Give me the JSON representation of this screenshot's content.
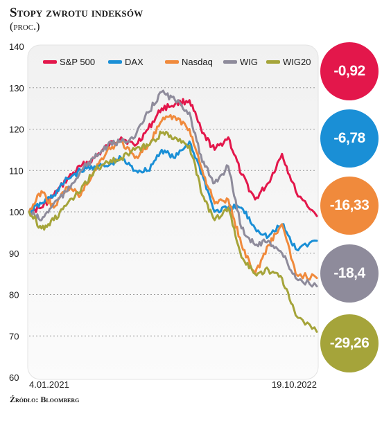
{
  "header": {
    "title": "Stopy zwrotu indeksów",
    "subtitle": "(proc.)"
  },
  "source": "Źródło: Bloomberg",
  "chart_data": {
    "type": "line",
    "title": "Stopy zwrotu indeksów",
    "subtitle": "(proc.)",
    "xlabel": "",
    "ylabel": "",
    "x_range": [
      "2021-01-04",
      "2022-10-19"
    ],
    "x_tick_labels": [
      "4.01.2021",
      "19.10.2022"
    ],
    "ylim": [
      60,
      140
    ],
    "y_ticks": [
      60,
      70,
      80,
      90,
      100,
      110,
      120,
      130,
      140
    ],
    "grid": "horizontal dotted",
    "legend_position": "top-left",
    "x_dates": [
      "2021-01-04",
      "2021-02-01",
      "2021-03-01",
      "2021-04-01",
      "2021-05-01",
      "2021-06-01",
      "2021-07-01",
      "2021-08-01",
      "2021-09-01",
      "2021-10-01",
      "2021-11-01",
      "2021-12-01",
      "2022-01-03",
      "2022-02-01",
      "2022-03-01",
      "2022-04-01",
      "2022-05-01",
      "2022-06-01",
      "2022-07-01",
      "2022-08-01",
      "2022-09-01",
      "2022-10-19"
    ],
    "series": [
      {
        "name": "S&P 500",
        "color": "#e3174b",
        "values": [
          100,
          101,
          104,
          108,
          111,
          113,
          116,
          118,
          116,
          120,
          125,
          126,
          127,
          119,
          115,
          118,
          109,
          103,
          107,
          114,
          105,
          99
        ],
        "final_label": "-0,92"
      },
      {
        "name": "DAX",
        "color": "#1a8fd6",
        "values": [
          100,
          102,
          104,
          108,
          110,
          111,
          111,
          113,
          110,
          110,
          115,
          113,
          117,
          109,
          100,
          101,
          101,
          96,
          94,
          97,
          91,
          93
        ],
        "final_label": "-6,78"
      },
      {
        "name": "Nasdaq",
        "color": "#f08a3c",
        "values": [
          100,
          105,
          101,
          106,
          104,
          110,
          115,
          117,
          113,
          116,
          122,
          123,
          120,
          110,
          102,
          103,
          92,
          85,
          92,
          97,
          85,
          84
        ],
        "final_label": "-16,33"
      },
      {
        "name": "WIG",
        "color": "#8e8b9b",
        "values": [
          100,
          98,
          102,
          105,
          110,
          113,
          116,
          117,
          118,
          124,
          129,
          127,
          124,
          112,
          107,
          111,
          96,
          92,
          93,
          90,
          84,
          82
        ],
        "final_label": "-18,4"
      },
      {
        "name": "WIG20",
        "color": "#a5a43a",
        "values": [
          100,
          96,
          98,
          102,
          105,
          110,
          112,
          113,
          115,
          116,
          119,
          118,
          116,
          104,
          98,
          101,
          89,
          85,
          86,
          84,
          75,
          71
        ],
        "final_label": "-29,26"
      }
    ]
  }
}
